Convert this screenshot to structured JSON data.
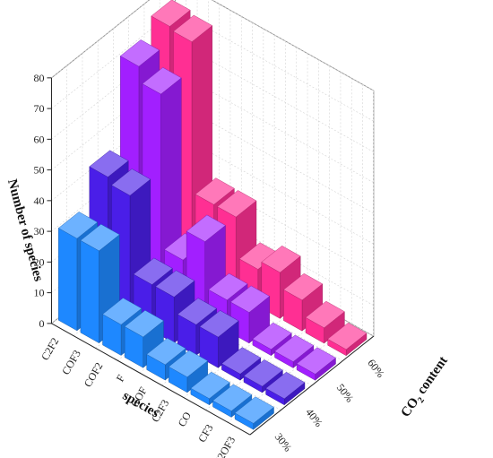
{
  "chart_data": {
    "type": "bar3d",
    "z_label": "Number of species",
    "x_label": "species",
    "y_label": {
      "main": "CO",
      "sub": "2",
      "rest": " content"
    },
    "z_ticks": [
      "0",
      "10",
      "20",
      "30",
      "40",
      "50",
      "60",
      "70",
      "80"
    ],
    "zlim": [
      0,
      80
    ],
    "species": [
      "C2F2",
      "COF3",
      "COF2",
      "F",
      "COF",
      "C2F3",
      "CO",
      "CF3",
      "C2OF3"
    ],
    "series": [
      {
        "name": "30%",
        "color": "#1e88ff",
        "values": [
          30,
          30,
          10,
          10,
          5,
          5,
          2,
          2,
          2
        ]
      },
      {
        "name": "40%",
        "color": "#4a1ee8",
        "values": [
          42,
          40,
          15,
          15,
          10,
          10,
          2,
          2,
          2
        ]
      },
      {
        "name": "50%",
        "color": "#a21fff",
        "values": [
          70,
          65,
          15,
          25,
          10,
          10,
          2,
          2,
          2
        ]
      },
      {
        "name": "60%",
        "color": "#ff2f93",
        "values": [
          75,
          74,
          25,
          25,
          12,
          15,
          10,
          5,
          2
        ]
      }
    ]
  }
}
